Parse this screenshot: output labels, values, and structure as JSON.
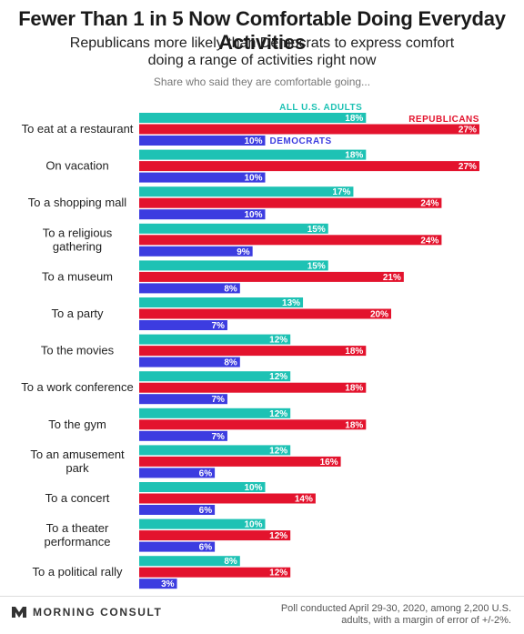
{
  "title": "Fewer Than 1 in 5 Now Comfortable Doing Everyday Activities",
  "subtitle": "Republicans more likely than Democrats to express comfort doing a range of activities right now",
  "caption": "Share who said they are comfortable going...",
  "colors": {
    "all": "#1ec2b4",
    "republicans": "#e3132d",
    "democrats": "#3c3ce0"
  },
  "footer": {
    "logo_text": "MORNING CONSULT",
    "logo_icon": "morning-consult-logo-icon",
    "source": "Poll conducted April 29-30, 2020, among 2,200 U.S. adults, with a margin of error of +/-2%."
  },
  "chart_data": {
    "type": "bar",
    "orientation": "horizontal",
    "categories": [
      "To eat at a restaurant",
      "On vacation",
      "To a shopping mall",
      "To a religious gathering",
      "To a museum",
      "To a party",
      "To the movies",
      "To a work conference",
      "To the gym",
      "To an amusement park",
      "To a concert",
      "To a theater performance",
      "To a political rally"
    ],
    "series": [
      {
        "name": "ALL U.S. ADULTS",
        "values": [
          18,
          18,
          17,
          15,
          15,
          13,
          12,
          12,
          12,
          12,
          10,
          10,
          8
        ]
      },
      {
        "name": "REPUBLICANS",
        "values": [
          27,
          27,
          24,
          24,
          21,
          20,
          18,
          18,
          18,
          16,
          14,
          12,
          12
        ]
      },
      {
        "name": "DEMOCRATS",
        "values": [
          10,
          10,
          10,
          9,
          8,
          7,
          8,
          7,
          7,
          6,
          6,
          6,
          3
        ]
      }
    ],
    "value_suffix": "%",
    "xlim": [
      0,
      27
    ],
    "legend_placement": "inline-first-group",
    "grid": false
  }
}
